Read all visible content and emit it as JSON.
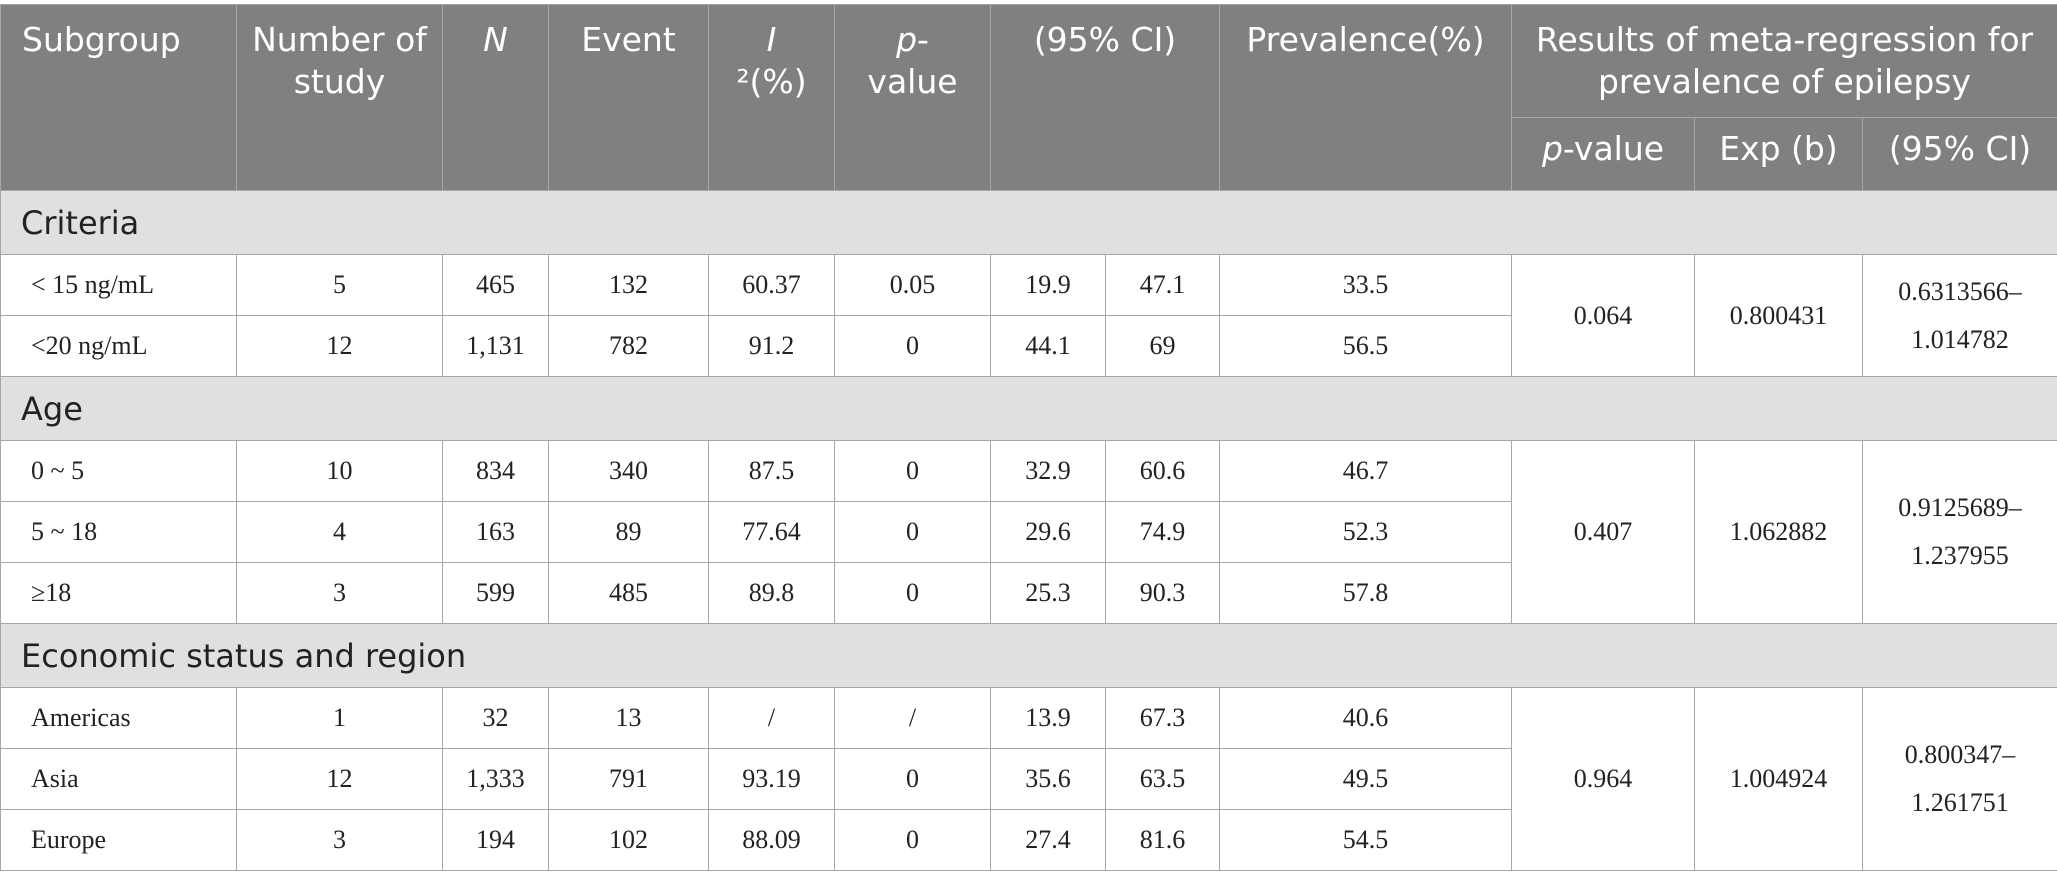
{
  "header": {
    "subgroup": "Subgroup",
    "number_of_study": "Number of study",
    "n": "N",
    "event": "Event",
    "i2_letter": "I",
    "i2_rest": "²(%)",
    "p_italic": "p",
    "p_rest": "-value",
    "ci": "(95% CI)",
    "prevalence": "Prevalence(%)",
    "meta_regression": "Results of meta-regression for prevalence of epilepsy",
    "sub_p_italic": "p",
    "sub_p_rest": "-value",
    "sub_exp": "Exp (b)",
    "sub_ci": "(95% CI)"
  },
  "groups": [
    {
      "label": "Criteria",
      "regression": {
        "p": "0.064",
        "exp": "0.800431",
        "ci_low": "0.6313566–",
        "ci_high": "1.014782"
      },
      "rows": [
        {
          "label": "< 15 ng/mL",
          "studies": "5",
          "n": "465",
          "event": "132",
          "i2": "60.37",
          "p": "0.05",
          "ci_low": "19.9",
          "ci_high": "47.1",
          "prevalence": "33.5"
        },
        {
          "label": "<20 ng/mL",
          "studies": "12",
          "n": "1,131",
          "event": "782",
          "i2": "91.2",
          "p": "0",
          "ci_low": "44.1",
          "ci_high": "69",
          "prevalence": "56.5"
        }
      ]
    },
    {
      "label": "Age",
      "regression": {
        "p": "0.407",
        "exp": "1.062882",
        "ci_low": "0.9125689–",
        "ci_high": "1.237955"
      },
      "rows": [
        {
          "label": "0 ~ 5",
          "studies": "10",
          "n": "834",
          "event": "340",
          "i2": "87.5",
          "p": "0",
          "ci_low": "32.9",
          "ci_high": "60.6",
          "prevalence": "46.7"
        },
        {
          "label": "5 ~ 18",
          "studies": "4",
          "n": "163",
          "event": "89",
          "i2": "77.64",
          "p": "0",
          "ci_low": "29.6",
          "ci_high": "74.9",
          "prevalence": "52.3"
        },
        {
          "label": "≥18",
          "studies": "3",
          "n": "599",
          "event": "485",
          "i2": "89.8",
          "p": "0",
          "ci_low": "25.3",
          "ci_high": "90.3",
          "prevalence": "57.8"
        }
      ]
    },
    {
      "label": "Economic status and region",
      "regression": {
        "p": "0.964",
        "exp": "1.004924",
        "ci_low": "0.800347–",
        "ci_high": "1.261751"
      },
      "rows": [
        {
          "label": "Americas",
          "studies": "1",
          "n": "32",
          "event": "13",
          "i2": "/",
          "p": "/",
          "ci_low": "13.9",
          "ci_high": "67.3",
          "prevalence": "40.6"
        },
        {
          "label": "Asia",
          "studies": "12",
          "n": "1,333",
          "event": "791",
          "i2": "93.19",
          "p": "0",
          "ci_low": "35.6",
          "ci_high": "63.5",
          "prevalence": "49.5"
        },
        {
          "label": "Europe",
          "studies": "3",
          "n": "194",
          "event": "102",
          "i2": "88.09",
          "p": "0",
          "ci_low": "27.4",
          "ci_high": "81.6",
          "prevalence": "54.5"
        }
      ]
    }
  ]
}
